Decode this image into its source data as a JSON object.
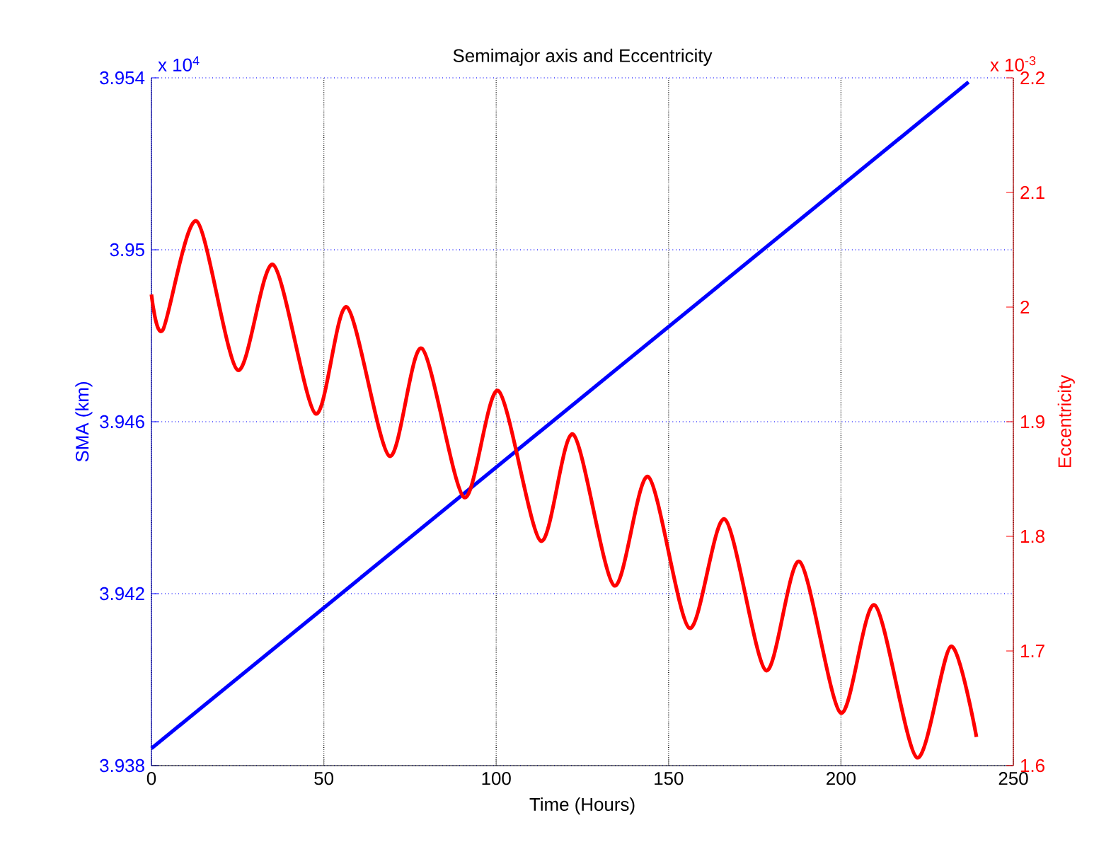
{
  "chart_data": {
    "type": "line",
    "title": "Semimajor axis and Eccentricity",
    "xlabel": "Time (Hours)",
    "ylabel": "SMA (km)",
    "y2label": "Eccentricity",
    "annotations": [
      "x 10$^{4}$",
      "x 10$^{-3}$"
    ],
    "xlim": [
      0,
      250
    ],
    "xticks": [
      0,
      50,
      100,
      150,
      200,
      250
    ],
    "ylim": [
      3.938,
      3.954
    ],
    "yticks": [
      3.938,
      3.942,
      3.946,
      3.95,
      3.954
    ],
    "y2lim": [
      1.6,
      2.2
    ],
    "y2ticks": [
      1.6,
      1.7,
      1.8,
      1.9,
      2,
      2.1,
      2.2
    ],
    "grid": true,
    "marker": "none",
    "line_style": "solid",
    "series": [
      {
        "color": "#0000ff",
        "axis": "y",
        "x": [
          0,
          237
        ],
        "values": [
          3.9384,
          3.9539
        ]
      },
      {
        "color": "#ff0000",
        "axis": "y2",
        "x": [
          0,
          3.3,
          13.1,
          25,
          35.3,
          47.6,
          56.7,
          69,
          78.4,
          90.7,
          100.6,
          112.9,
          122.3,
          134.2,
          144.1,
          156,
          166.3,
          178.2,
          188,
          199.9,
          209.8,
          222,
          231.9,
          239.3
        ],
        "values": [
          2.011,
          1.98,
          2.075,
          1.945,
          2.037,
          1.907,
          2.0,
          1.87,
          1.964,
          1.834,
          1.927,
          1.796,
          1.889,
          1.757,
          1.852,
          1.72,
          1.815,
          1.683,
          1.778,
          1.646,
          1.74,
          1.607,
          1.704,
          1.625
        ]
      }
    ]
  }
}
